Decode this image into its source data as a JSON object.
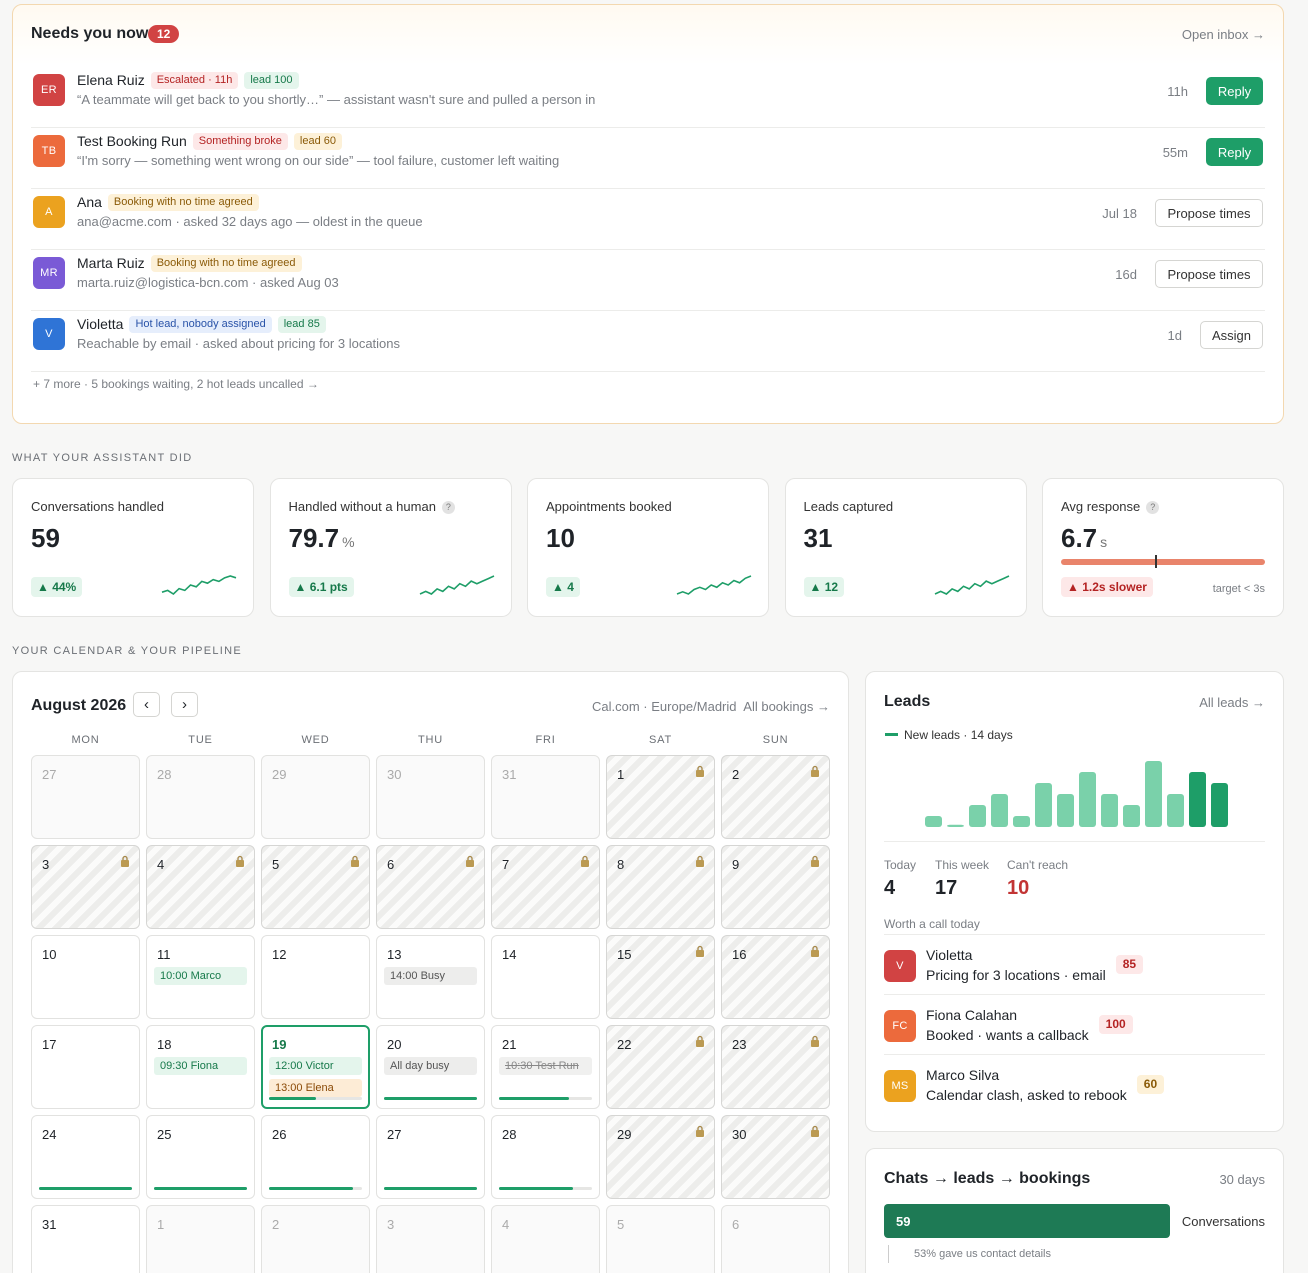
{
  "needs": {
    "title": "Needs you now",
    "count": "12",
    "open_inbox": "Open inbox →",
    "items": [
      {
        "initials": "ER",
        "color": "#d14343",
        "name": "Elena Ruiz",
        "badges": [
          {
            "text": "Escalated · 11h",
            "type": "red"
          },
          {
            "text": "lead 100",
            "type": "green"
          }
        ],
        "sub": "“A teammate will get back to you shortly…” — assistant wasn't sure and pulled a person in",
        "time": "11h",
        "action": "Reply",
        "action_type": "green"
      },
      {
        "initials": "TB",
        "color": "#ec6a3c",
        "name": "Test Booking Run",
        "badges": [
          {
            "text": "Something broke",
            "type": "red"
          },
          {
            "text": "lead 60",
            "type": "amber"
          }
        ],
        "sub": "“I'm sorry — something went wrong on our side” — tool failure, customer left waiting",
        "time": "55m",
        "action": "Reply",
        "action_type": "green"
      },
      {
        "initials": "A",
        "color": "#eba21f",
        "name": "Ana",
        "badges": [
          {
            "text": "Booking with no time agreed",
            "type": "amber"
          }
        ],
        "sub": "ana@acme.com · asked 32 days ago — oldest in the queue",
        "time": "Jul 18",
        "action": "Propose times",
        "action_type": "out"
      },
      {
        "initials": "MR",
        "color": "#7a5ad6",
        "name": "Marta Ruiz",
        "badges": [
          {
            "text": "Booking with no time agreed",
            "type": "amber"
          }
        ],
        "sub": "marta.ruiz@logistica-bcn.com · asked Aug 03",
        "time": "16d",
        "action": "Propose times",
        "action_type": "out"
      },
      {
        "initials": "V",
        "color": "#2f74d6",
        "name": "Violetta",
        "badges": [
          {
            "text": "Hot lead, nobody assigned",
            "type": "blue"
          },
          {
            "text": "lead 85",
            "type": "green"
          }
        ],
        "sub": "Reachable by email · asked about pricing for 3 locations",
        "time": "1d",
        "action": "Assign",
        "action_type": "out"
      }
    ],
    "more": "+ 7 more · 5 bookings waiting, 2 hot leads uncalled →"
  },
  "assistant": {
    "heading": "WHAT YOUR ASSISTANT DID",
    "stats": [
      {
        "label": "Conversations handled",
        "value": "59",
        "unit": "",
        "help": false,
        "delta": "▲ 44%",
        "spark": [
          3,
          4,
          2,
          5,
          4,
          7,
          6,
          9,
          8,
          10,
          9,
          11,
          12,
          11
        ]
      },
      {
        "label": "Handled without a human",
        "value": "79.7",
        "unit": "%",
        "help": true,
        "delta": "▲ 6.1 pts",
        "spark": [
          4,
          5,
          4,
          6,
          5,
          7,
          6,
          8,
          7,
          9,
          8,
          9,
          10,
          11
        ]
      },
      {
        "label": "Appointments booked",
        "value": "10",
        "unit": "",
        "help": false,
        "delta": "▲ 4",
        "spark": [
          2,
          3,
          2,
          4,
          5,
          4,
          6,
          5,
          7,
          6,
          8,
          7,
          9,
          10
        ]
      },
      {
        "label": "Leads captured",
        "value": "31",
        "unit": "",
        "help": false,
        "delta": "▲ 12",
        "spark": [
          3,
          4,
          3,
          5,
          4,
          6,
          5,
          7,
          6,
          8,
          7,
          8,
          9,
          10
        ]
      },
      {
        "label": "Avg response",
        "value": "6.7",
        "unit": "s",
        "help": true,
        "delta": "▲ 1.2s slower",
        "target": "target < 3s",
        "level": 0.46
      }
    ]
  },
  "calendar": {
    "heading": "YOUR CALENDAR & YOUR PIPELINE",
    "month": "August 2026",
    "prev": "‹",
    "next": "›",
    "source": "Cal.com · Europe/Madrid",
    "all_bookings": "All bookings →",
    "weekdays": [
      "MON",
      "TUE",
      "WED",
      "THU",
      "FRI",
      "SAT",
      "SUN"
    ],
    "cells": [
      {
        "d": "27",
        "past": true
      },
      {
        "d": "28",
        "past": true
      },
      {
        "d": "29",
        "past": true
      },
      {
        "d": "30",
        "past": true
      },
      {
        "d": "31",
        "past": true
      },
      {
        "d": "1",
        "blocked": true
      },
      {
        "d": "2",
        "blocked": true
      },
      {
        "d": "3",
        "blocked": true
      },
      {
        "d": "4",
        "blocked": true
      },
      {
        "d": "5",
        "blocked": true
      },
      {
        "d": "6",
        "blocked": true
      },
      {
        "d": "7",
        "blocked": true
      },
      {
        "d": "8",
        "blocked": true
      },
      {
        "d": "9",
        "blocked": true
      },
      {
        "d": "10"
      },
      {
        "d": "11",
        "events": [
          {
            "t": "10:00 Marco",
            "k": "g"
          }
        ]
      },
      {
        "d": "12"
      },
      {
        "d": "13",
        "events": [
          {
            "t": "14:00 Busy",
            "k": "gr"
          }
        ]
      },
      {
        "d": "14"
      },
      {
        "d": "15",
        "blocked": true
      },
      {
        "d": "16",
        "blocked": true
      },
      {
        "d": "17"
      },
      {
        "d": "18",
        "events": [
          {
            "t": "09:30 Fiona",
            "k": "g"
          }
        ]
      },
      {
        "d": "19",
        "today": true,
        "events": [
          {
            "t": "12:00 Victor",
            "k": "g"
          },
          {
            "t": "13:00 Elena",
            "k": "o"
          }
        ],
        "fill": 0.5
      },
      {
        "d": "20",
        "events": [
          {
            "t": "All day busy",
            "k": "gr"
          }
        ],
        "fill": 1.0
      },
      {
        "d": "21",
        "events": [
          {
            "t": "10:30 Test Run",
            "k": "st"
          }
        ],
        "fill": 0.75
      },
      {
        "d": "22",
        "blocked": true
      },
      {
        "d": "23",
        "blocked": true
      },
      {
        "d": "24",
        "fill": 1.0
      },
      {
        "d": "25",
        "fill": 1.0
      },
      {
        "d": "26",
        "fill": 0.9
      },
      {
        "d": "27",
        "fill": 1.0
      },
      {
        "d": "28",
        "fill": 0.8
      },
      {
        "d": "29",
        "blocked": true
      },
      {
        "d": "30",
        "blocked": true
      },
      {
        "d": "31"
      },
      {
        "d": "1",
        "past": true
      },
      {
        "d": "2",
        "past": true
      },
      {
        "d": "3",
        "past": true
      },
      {
        "d": "4",
        "past": true
      },
      {
        "d": "5",
        "past": true
      },
      {
        "d": "6",
        "past": true
      }
    ]
  },
  "leads": {
    "title": "Leads",
    "all_leads": "All leads →",
    "legend": "New leads · 14 days",
    "chart_data": {
      "type": "bar",
      "series": [
        {
          "name": "New leads · 14 days",
          "values": [
            1,
            0.2,
            2,
            3,
            1,
            4,
            3,
            5,
            3,
            2,
            6,
            3,
            5,
            4
          ]
        }
      ],
      "ylim": [
        0,
        6
      ]
    },
    "today_label": "Today",
    "today_value": "4",
    "week_label": "This week",
    "week_value": "17",
    "reach_label": "Can't reach",
    "reach_value": "10",
    "worth": "Worth a call today",
    "calls": [
      {
        "initials": "V",
        "color": "#d14343",
        "name": "Violetta",
        "sub": "Pricing for 3 locations · email",
        "score": "85",
        "score_type": "red"
      },
      {
        "initials": "FC",
        "color": "#ec6a3c",
        "name": "Fiona Calahan",
        "sub": "Booked · wants a callback",
        "score": "100",
        "score_type": "red"
      },
      {
        "initials": "MS",
        "color": "#eba21f",
        "name": "Marco Silva",
        "sub": "Calendar clash, asked to rebook",
        "score": "60",
        "score_type": "amber"
      }
    ]
  },
  "funnel": {
    "title": "Chats → leads → bookings",
    "range": "30 days",
    "value": "59",
    "label": "Conversations",
    "note": "53% gave us contact details"
  }
}
